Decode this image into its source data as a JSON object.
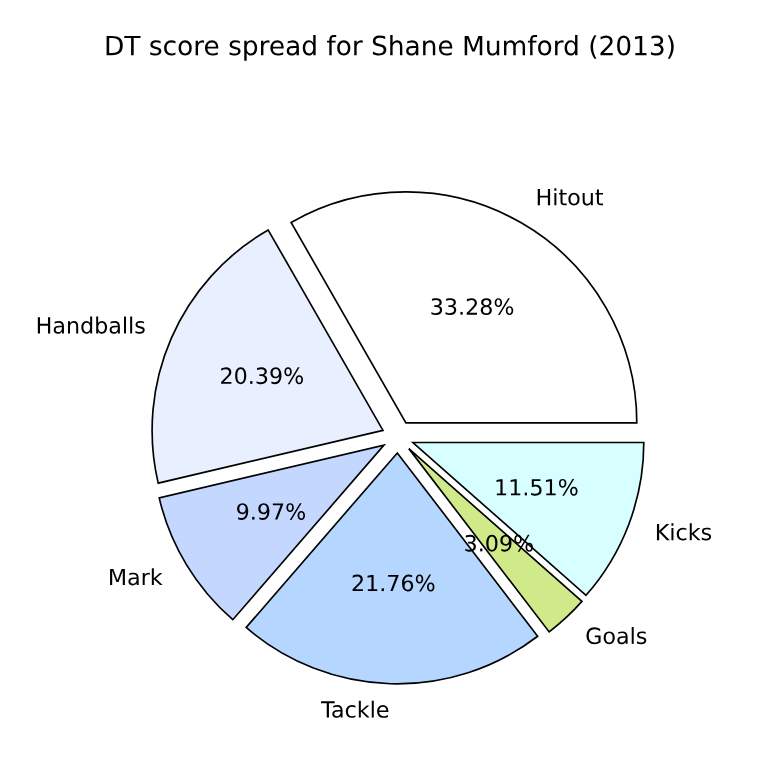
{
  "chart_data": {
    "type": "pie",
    "title": "DT score spread for Shane Mumford (2013)",
    "categories": [
      "Hitout",
      "Handballs",
      "Mark",
      "Tackle",
      "Goals",
      "Kicks"
    ],
    "values": [
      33.28,
      20.39,
      9.97,
      21.76,
      3.09,
      11.51
    ],
    "colors": [
      "#ffffff",
      "#e8f0ff",
      "#c4d8ff",
      "#b4d6ff",
      "#d0ea8a",
      "#d8ffff"
    ],
    "value_labels": [
      "33.28%",
      "20.39%",
      "9.97%",
      "21.76%",
      "3.09%",
      "11.51%"
    ],
    "legend": false
  }
}
